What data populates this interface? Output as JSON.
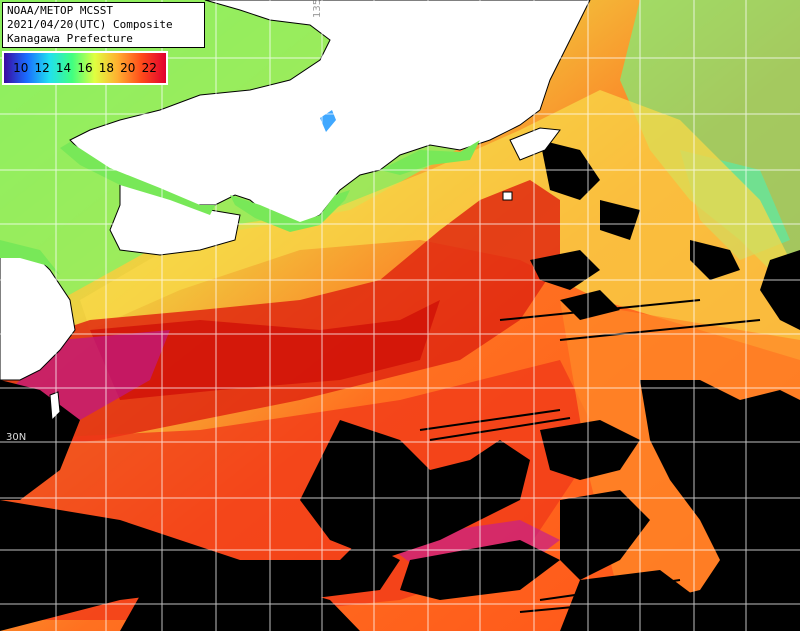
{
  "header": {
    "line1": "NOAA/METOP MCSST",
    "line2": "2021/04/20(UTC) Composite",
    "line3": "Kanagawa Prefecture"
  },
  "legend": {
    "ticks": [
      "10",
      "12",
      "14",
      "16",
      "18",
      "20",
      "22"
    ],
    "gradient_colors": [
      "#3a0aa0",
      "#1a6cff",
      "#20e0f0",
      "#40ff80",
      "#e0ff40",
      "#ffb030",
      "#ff4a1a",
      "#e00030"
    ]
  },
  "grid_labels": {
    "lat_30n": "30N",
    "lon_135e": "135E"
  },
  "colors": {
    "land": "#ffffff",
    "cloud_mask": "#000000",
    "grid": "#ffffff"
  }
}
